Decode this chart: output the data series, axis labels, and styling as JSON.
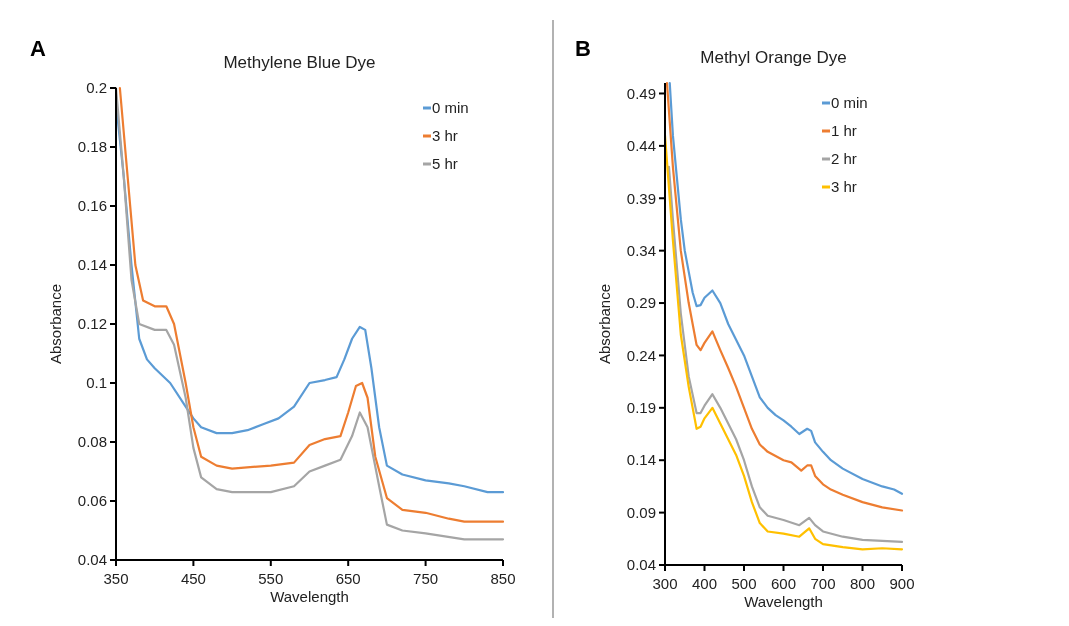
{
  "chart_data": [
    {
      "type": "line",
      "title": "Methylene Blue Dye",
      "xlabel": "Wavelength",
      "ylabel": "Absorbance",
      "annotations": [
        "A"
      ],
      "xlim": [
        350,
        850
      ],
      "xticks": [
        350,
        450,
        550,
        650,
        750,
        850
      ],
      "ylim": [
        0.04,
        0.2
      ],
      "yticks": [
        0.04,
        0.06,
        0.08,
        0.1,
        0.12,
        0.14,
        0.16,
        0.18,
        0.2
      ],
      "legend": "top right",
      "grid": false,
      "series": [
        {
          "name": "0 min",
          "color": "#5b9bd5",
          "x": [
            350,
            360,
            370,
            380,
            390,
            400,
            420,
            440,
            450,
            460,
            480,
            500,
            520,
            540,
            560,
            580,
            600,
            620,
            635,
            645,
            655,
            665,
            672,
            680,
            690,
            700,
            720,
            750,
            780,
            800,
            830,
            850
          ],
          "values": [
            0.195,
            0.17,
            0.14,
            0.115,
            0.108,
            0.105,
            0.1,
            0.092,
            0.088,
            0.085,
            0.083,
            0.083,
            0.084,
            0.086,
            0.088,
            0.092,
            0.1,
            0.101,
            0.102,
            0.108,
            0.115,
            0.119,
            0.118,
            0.105,
            0.085,
            0.072,
            0.069,
            0.067,
            0.066,
            0.065,
            0.063,
            0.063
          ]
        },
        {
          "name": "3 hr",
          "color": "#ed7d31",
          "x": [
            355,
            365,
            375,
            385,
            400,
            415,
            425,
            440,
            450,
            460,
            480,
            500,
            550,
            580,
            600,
            620,
            640,
            650,
            660,
            668,
            675,
            685,
            700,
            720,
            750,
            780,
            800,
            850
          ],
          "values": [
            0.2,
            0.17,
            0.14,
            0.128,
            0.126,
            0.126,
            0.12,
            0.1,
            0.085,
            0.075,
            0.072,
            0.071,
            0.072,
            0.073,
            0.079,
            0.081,
            0.082,
            0.09,
            0.099,
            0.1,
            0.095,
            0.075,
            0.061,
            0.057,
            0.056,
            0.054,
            0.053,
            0.053
          ]
        },
        {
          "name": "5 hr",
          "color": "#a5a5a5",
          "x": [
            350,
            360,
            370,
            380,
            400,
            415,
            425,
            440,
            450,
            460,
            480,
            500,
            550,
            580,
            600,
            620,
            640,
            655,
            665,
            675,
            690,
            700,
            720,
            750,
            800,
            850
          ],
          "values": [
            0.2,
            0.17,
            0.135,
            0.12,
            0.118,
            0.118,
            0.113,
            0.095,
            0.078,
            0.068,
            0.064,
            0.063,
            0.063,
            0.065,
            0.07,
            0.072,
            0.074,
            0.082,
            0.09,
            0.085,
            0.065,
            0.052,
            0.05,
            0.049,
            0.047,
            0.047
          ]
        }
      ]
    },
    {
      "type": "line",
      "title": "Methyl Orange Dye",
      "xlabel": "Wavelength",
      "ylabel": "Absorbance",
      "annotations": [
        "B"
      ],
      "xlim": [
        300,
        900
      ],
      "xticks": [
        300,
        400,
        500,
        600,
        700,
        800,
        900
      ],
      "ylim": [
        0.04,
        0.5
      ],
      "yticks": [
        0.04,
        0.09,
        0.14,
        0.19,
        0.24,
        0.29,
        0.34,
        0.39,
        0.44,
        0.49
      ],
      "legend": "top right",
      "grid": false,
      "series": [
        {
          "name": "0 min",
          "color": "#5b9bd5",
          "x": [
            312,
            320,
            330,
            340,
            350,
            360,
            370,
            380,
            390,
            400,
            420,
            440,
            460,
            480,
            500,
            520,
            540,
            560,
            580,
            600,
            620,
            640,
            660,
            670,
            680,
            700,
            720,
            750,
            800,
            850,
            880,
            900
          ],
          "values": [
            0.5,
            0.45,
            0.41,
            0.37,
            0.34,
            0.32,
            0.3,
            0.287,
            0.288,
            0.295,
            0.302,
            0.29,
            0.27,
            0.255,
            0.24,
            0.22,
            0.2,
            0.19,
            0.183,
            0.178,
            0.172,
            0.165,
            0.17,
            0.168,
            0.157,
            0.148,
            0.14,
            0.132,
            0.122,
            0.115,
            0.112,
            0.108
          ]
        },
        {
          "name": "1 hr",
          "color": "#ed7d31",
          "x": [
            305,
            320,
            340,
            360,
            380,
            390,
            400,
            420,
            440,
            460,
            480,
            500,
            520,
            540,
            560,
            600,
            620,
            645,
            660,
            670,
            680,
            700,
            720,
            750,
            800,
            850,
            900
          ],
          "values": [
            0.5,
            0.42,
            0.34,
            0.29,
            0.25,
            0.245,
            0.252,
            0.263,
            0.245,
            0.228,
            0.21,
            0.19,
            0.17,
            0.155,
            0.148,
            0.14,
            0.138,
            0.13,
            0.135,
            0.135,
            0.125,
            0.117,
            0.112,
            0.107,
            0.1,
            0.095,
            0.092
          ]
        },
        {
          "name": "2 hr",
          "color": "#a5a5a5",
          "x": [
            310,
            320,
            340,
            360,
            380,
            390,
            400,
            420,
            440,
            460,
            480,
            500,
            520,
            540,
            560,
            600,
            640,
            665,
            680,
            700,
            750,
            800,
            850,
            900
          ],
          "values": [
            0.42,
            0.37,
            0.28,
            0.22,
            0.185,
            0.185,
            0.192,
            0.203,
            0.19,
            0.175,
            0.16,
            0.14,
            0.115,
            0.095,
            0.087,
            0.083,
            0.078,
            0.085,
            0.078,
            0.072,
            0.067,
            0.064,
            0.063,
            0.062
          ]
        },
        {
          "name": "3 hr",
          "color": "#ffc000",
          "x": [
            300,
            320,
            340,
            360,
            380,
            390,
            400,
            420,
            440,
            460,
            480,
            500,
            520,
            540,
            560,
            600,
            640,
            665,
            680,
            700,
            750,
            800,
            850,
            900
          ],
          "values": [
            0.45,
            0.35,
            0.26,
            0.21,
            0.17,
            0.172,
            0.18,
            0.19,
            0.175,
            0.16,
            0.145,
            0.125,
            0.1,
            0.08,
            0.072,
            0.07,
            0.067,
            0.075,
            0.065,
            0.06,
            0.057,
            0.055,
            0.056,
            0.055
          ]
        }
      ]
    }
  ]
}
